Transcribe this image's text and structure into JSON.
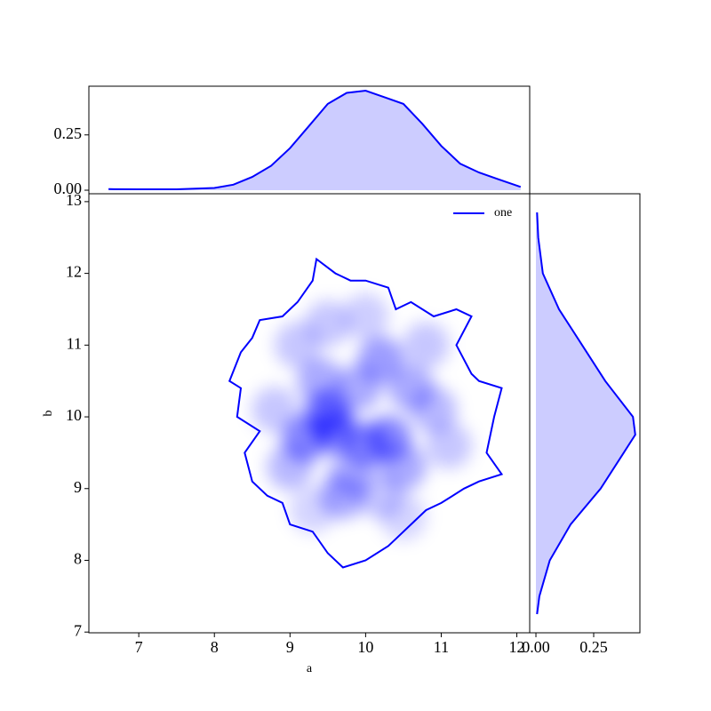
{
  "chart_data": {
    "type": "joint-kde",
    "x_label": "a",
    "y_label": "b",
    "color": "#0000ff",
    "fill_color": "#ccccff",
    "legend_location": "upper right",
    "series": [
      {
        "name": "one",
        "color": "#0000ff"
      }
    ],
    "xlim": [
      6.34,
      12.17
    ],
    "ylim": [
      6.99,
      13.11
    ],
    "xticks": [
      7,
      8,
      9,
      10,
      11,
      12
    ],
    "yticks": [
      7,
      8,
      9,
      10,
      11,
      12,
      13
    ],
    "density": {
      "x": [
        9.5,
        9.2,
        9.6,
        10.0,
        10.3,
        10.2,
        10.6,
        9.9,
        9.4,
        9.1,
        10.9,
        10.5,
        9.8,
        9.7,
        10.2,
        9.0,
        8.8,
        10.8,
        9.5,
        10.0,
        11.1,
        9.3,
        10.5
      ],
      "y": [
        10.05,
        9.7,
        9.8,
        9.6,
        9.7,
        10.8,
        10.4,
        10.4,
        10.5,
        11.0,
        10.1,
        9.3,
        9.2,
        8.9,
        8.9,
        9.3,
        10.1,
        11.0,
        11.3,
        11.4,
        9.6,
        8.7,
        8.6
      ],
      "weights": [
        1,
        0.85,
        0.9,
        0.8,
        0.85,
        0.7,
        0.6,
        0.6,
        0.6,
        0.4,
        0.5,
        0.6,
        0.5,
        0.6,
        0.4,
        0.5,
        0.4,
        0.4,
        0.4,
        0.35,
        0.4,
        0.3,
        0.3
      ]
    },
    "contour": {
      "x": [
        8.2,
        8.35,
        8.5,
        8.6,
        8.9,
        9.1,
        9.3,
        9.35,
        9.6,
        9.8,
        10.0,
        10.3,
        10.4,
        10.6,
        10.9,
        11.2,
        11.4,
        11.2,
        11.4,
        11.5,
        11.8,
        11.7,
        11.6,
        11.8,
        11.5,
        11.3,
        11.0,
        10.8,
        10.6,
        10.4,
        10.3,
        10.0,
        9.7,
        9.5,
        9.3,
        9.0,
        8.9,
        8.7,
        8.5,
        8.4,
        8.6,
        8.3,
        8.35,
        8.2
      ],
      "y": [
        10.5,
        10.9,
        11.1,
        11.35,
        11.4,
        11.6,
        11.9,
        12.2,
        12.0,
        11.9,
        11.9,
        11.8,
        11.5,
        11.6,
        11.4,
        11.5,
        11.4,
        11.0,
        10.6,
        10.5,
        10.4,
        10.0,
        9.5,
        9.2,
        9.1,
        9.0,
        8.8,
        8.7,
        8.5,
        8.3,
        8.2,
        8.0,
        7.9,
        8.1,
        8.4,
        8.5,
        8.8,
        8.9,
        9.1,
        9.5,
        9.8,
        10.0,
        10.4,
        10.5
      ]
    },
    "top_marginal": {
      "x": [
        6.6,
        7,
        7.5,
        8,
        8.25,
        8.5,
        8.75,
        9,
        9.25,
        9.5,
        9.75,
        10,
        10.25,
        10.5,
        10.75,
        11,
        11.25,
        11.5,
        11.75,
        12.05
      ],
      "values": [
        0.005,
        0.004,
        0.004,
        0.01,
        0.025,
        0.06,
        0.11,
        0.19,
        0.29,
        0.39,
        0.44,
        0.45,
        0.42,
        0.39,
        0.3,
        0.2,
        0.12,
        0.08,
        0.05,
        0.015
      ],
      "ylim": [
        -0.016,
        0.47
      ],
      "yticks": [
        {
          "value": 0,
          "label": "0.00"
        },
        0.25
      ]
    },
    "right_marginal": {
      "y": [
        7.25,
        7.5,
        8,
        8.5,
        9,
        9.5,
        9.75,
        10,
        10.5,
        11,
        11.5,
        12,
        12.5,
        12.85
      ],
      "values": [
        0.005,
        0.015,
        0.06,
        0.15,
        0.28,
        0.38,
        0.43,
        0.42,
        0.3,
        0.2,
        0.1,
        0.03,
        0.01,
        0.005
      ],
      "xlim": [
        -0.027,
        0.45
      ],
      "xticks": [
        {
          "value": 0,
          "label": "0.00"
        },
        0.25
      ]
    }
  }
}
